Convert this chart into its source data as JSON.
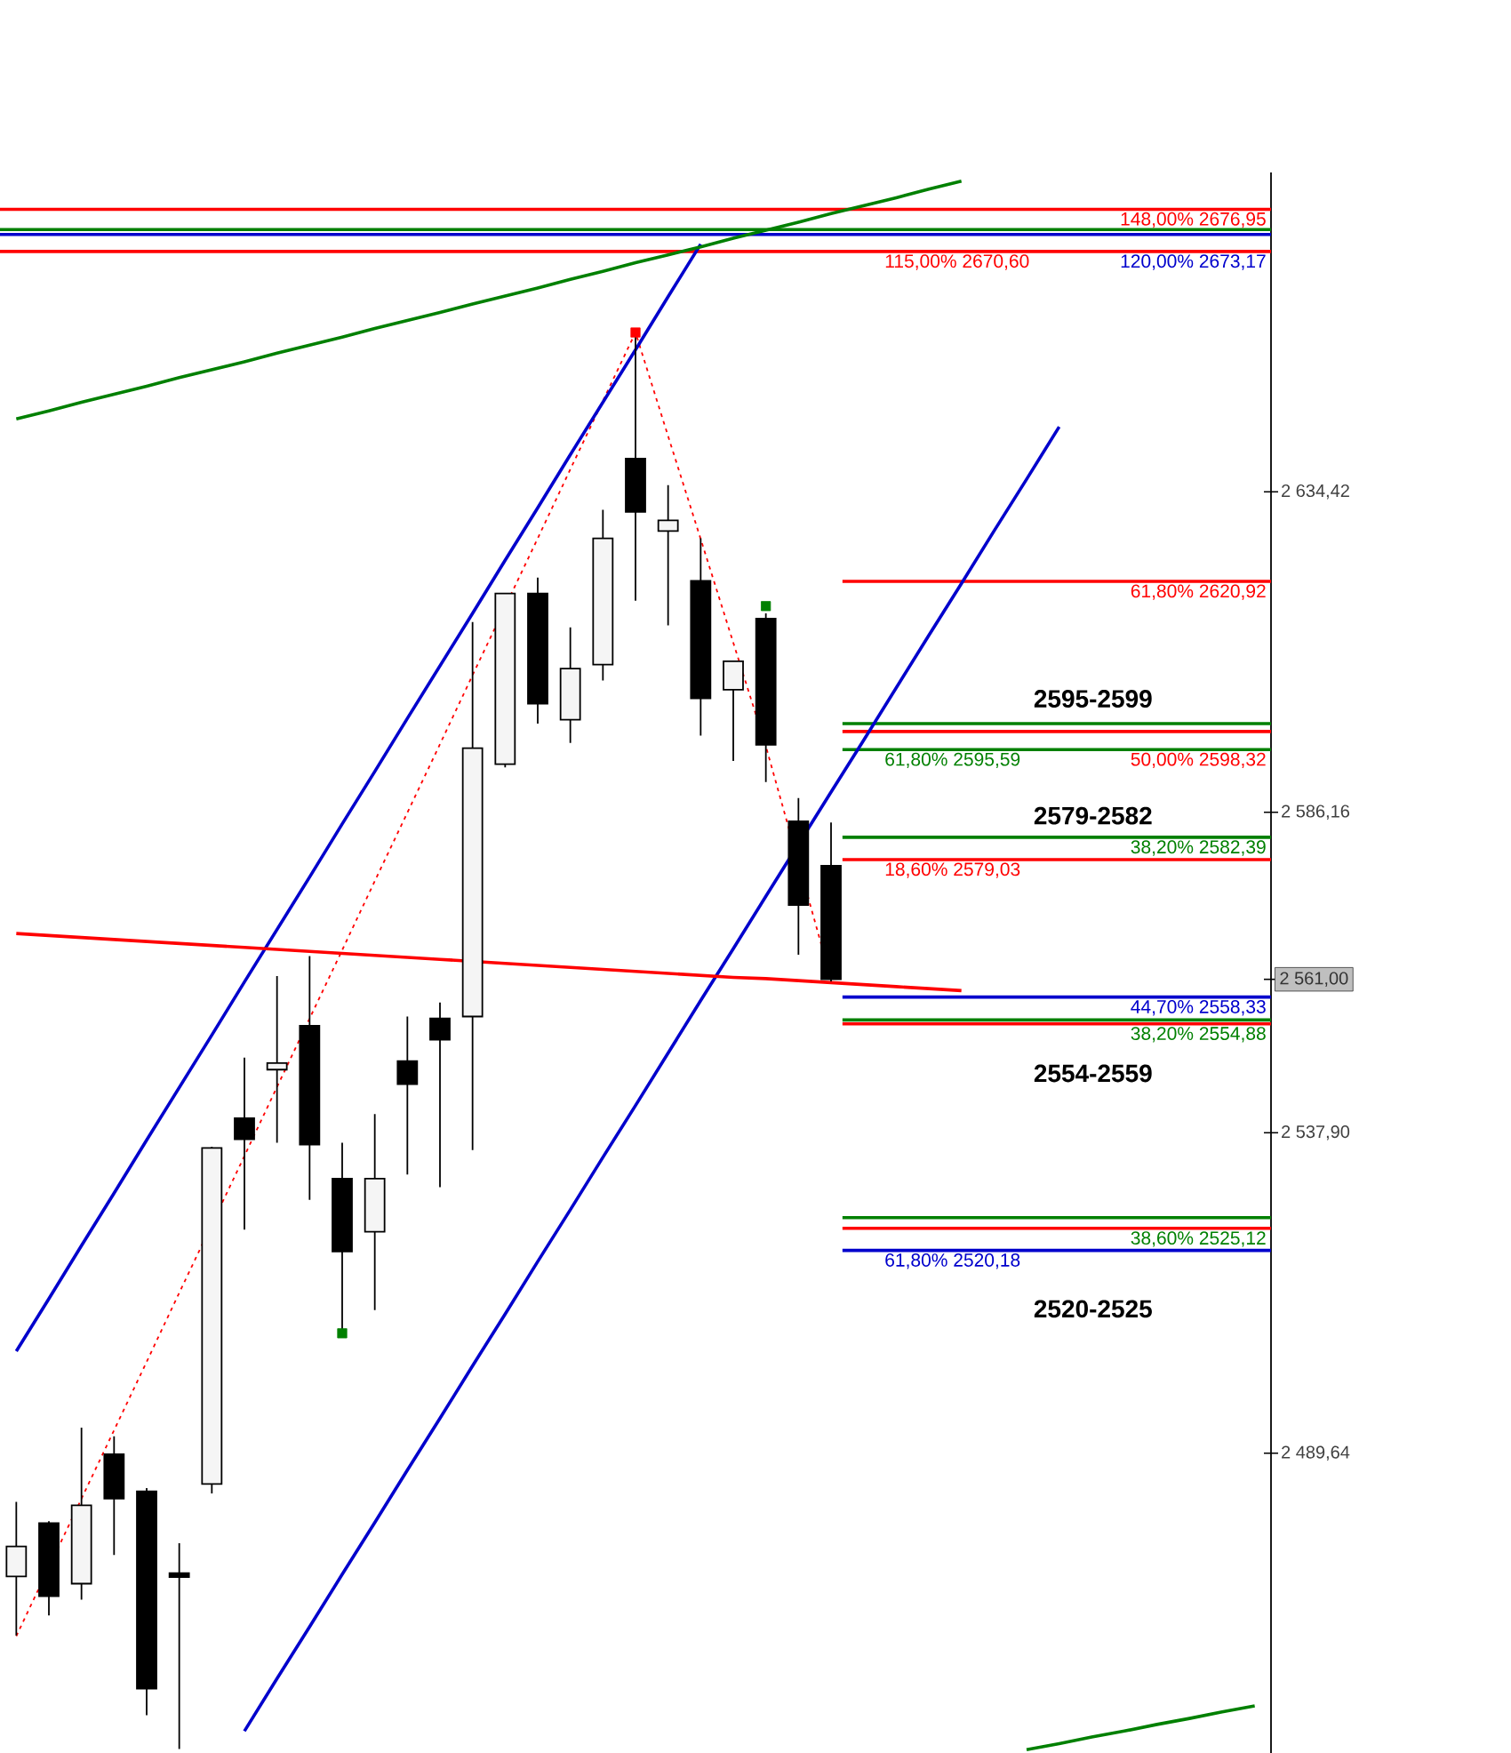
{
  "chart_data": {
    "type": "candlestick",
    "categories": [
      null,
      null,
      null,
      null,
      null,
      null,
      null,
      null,
      null,
      null,
      null,
      null,
      null,
      null,
      null,
      null,
      null,
      null,
      null,
      null,
      null,
      null,
      null,
      null,
      null,
      null,
      null,
      null,
      null,
      null,
      null,
      null,
      null,
      null,
      null,
      null,
      null,
      null,
      null
    ],
    "ohlc": [
      [
        2471.1,
        2482.3,
        2462.2,
        2475.6
      ],
      [
        2479.1,
        2479.4,
        2465.2,
        2468.1
      ],
      [
        2470.0,
        2493.5,
        2467.6,
        2481.8
      ],
      [
        2489.5,
        2492.2,
        2474.3,
        2482.8
      ],
      [
        2483.9,
        2484.4,
        2450.2,
        2454.2
      ],
      [
        2471.6,
        2476.1,
        2445.1,
        2471.0
      ],
      [
        2485.0,
        2535.8,
        2483.6,
        2535.6
      ],
      [
        2540.1,
        2549.2,
        2523.3,
        2536.9
      ],
      [
        2547.4,
        2561.5,
        2536.4,
        2548.4
      ],
      [
        2554.0,
        2564.5,
        2527.8,
        2536.1
      ],
      [
        2531.0,
        2536.4,
        2507.7,
        2520.0
      ],
      [
        2523.0,
        2540.7,
        2511.2,
        2531.0
      ],
      [
        2548.7,
        2555.4,
        2531.6,
        2545.2
      ],
      [
        2555.1,
        2557.5,
        2529.7,
        2551.9
      ],
      [
        2555.4,
        2614.8,
        2535.3,
        2595.8
      ],
      [
        2593.4,
        2619.1,
        2592.9,
        2619.1
      ],
      [
        2619.1,
        2621.5,
        2599.5,
        2602.5
      ],
      [
        2600.1,
        2614.0,
        2596.6,
        2607.8
      ],
      [
        2608.4,
        2631.7,
        2606.0,
        2627.4
      ],
      [
        2639.4,
        2658.4,
        2618.0,
        2631.4
      ],
      [
        2628.5,
        2635.4,
        2614.3,
        2630.1
      ],
      [
        2621.0,
        2627.4,
        2597.7,
        2603.3
      ],
      [
        2604.6,
        2608.9,
        2593.9,
        2608.9
      ],
      [
        2615.3,
        2616.1,
        2590.7,
        2596.3
      ],
      [
        2584.8,
        2588.3,
        2564.7,
        2572.2
      ],
      [
        2578.1,
        2584.6,
        2560.7,
        2561.0
      ],
      null,
      null,
      null,
      null,
      null,
      null,
      null,
      null,
      null,
      null,
      null,
      null,
      null
    ],
    "series": [
      {
        "type": "line",
        "color": "#ff0000",
        "line_style": "dashed",
        "values": [
          2462.1,
          null,
          2482.8,
          2493.1,
          2503.4,
          2513.8,
          null,
          2534.4,
          2544.8,
          2555.1,
          2565.4,
          2575.8,
          2586.1,
          2596.4,
          2606.8,
          null,
          2627.4,
          2637.8,
          2648.1,
          2658.4,
          2642.8,
          2627.3,
          2611.7,
          2596.1,
          null,
          2561.0,
          null,
          null,
          null,
          null,
          null,
          null,
          null,
          null,
          null,
          null,
          null,
          null,
          null
        ]
      },
      {
        "type": "line",
        "color": "#0000cc",
        "line_style": "solid",
        "values": [
          2505.0,
          2512.9,
          2520.9,
          2528.8,
          2536.8,
          2544.7,
          2552.6,
          2560.6,
          2568.5,
          2576.4,
          2584.4,
          2592.3,
          2600.3,
          2608.2,
          2616.1,
          2624.1,
          2632.0,
          2640.0,
          2647.9,
          2655.8,
          2663.8,
          2671.7,
          null,
          null,
          null,
          null,
          null,
          null,
          null,
          null,
          null,
          null,
          null,
          null,
          null,
          null,
          null,
          null,
          null
        ]
      },
      {
        "type": "line",
        "color": "#0000cc",
        "line_style": "solid",
        "values": [
          null,
          null,
          null,
          null,
          null,
          null,
          null,
          2447.8,
          2455.7,
          2463.5,
          2471.4,
          2479.2,
          2487.1,
          2494.9,
          2502.8,
          2510.6,
          2518.5,
          2526.3,
          2534.2,
          2542.0,
          2549.9,
          2557.8,
          2565.6,
          2573.5,
          null,
          2589.2,
          2597.0,
          2604.9,
          2612.8,
          2620.6,
          2628.5,
          2636.3,
          2644.2,
          null,
          null,
          null,
          null,
          null,
          null
        ]
      },
      {
        "type": "line",
        "color": "#008000",
        "line_style": "solid",
        "values": [
          2645.4,
          2646.6,
          2647.9,
          2649.1,
          2650.3,
          2651.6,
          2652.8,
          2654.0,
          2655.3,
          2656.5,
          2657.7,
          2659.0,
          2660.2,
          2661.4,
          2662.7,
          2663.9,
          2665.1,
          2666.4,
          2667.6,
          2668.9,
          2670.1,
          2671.3,
          2672.6,
          2673.8,
          2675.0,
          2676.3,
          2677.5,
          2678.7,
          2680.0,
          2681.2,
          null,
          null,
          null,
          null,
          null,
          null,
          null,
          null,
          null
        ]
      },
      {
        "type": "line",
        "color": "#ff0000",
        "line_style": "solid",
        "values": [
          2567.9,
          2567.6,
          2567.3,
          2567.0,
          2566.7,
          2566.4,
          2566.1,
          2565.8,
          2565.5,
          2565.2,
          2564.9,
          2564.6,
          2564.3,
          2564.0,
          null,
          2563.4,
          2563.1,
          2562.8,
          2562.5,
          2562.2,
          2561.9,
          2561.6,
          2561.3,
          2561.1,
          2560.8,
          2560.5,
          2560.2,
          2559.9,
          2559.6,
          2559.3,
          null,
          null,
          null,
          null,
          null,
          null,
          null,
          null,
          null
        ]
      },
      {
        "type": "line",
        "color": "#008000",
        "line_style": "solid",
        "values": [
          null,
          null,
          null,
          null,
          null,
          null,
          null,
          null,
          null,
          null,
          null,
          null,
          null,
          null,
          null,
          null,
          null,
          null,
          null,
          null,
          null,
          null,
          null,
          null,
          null,
          null,
          null,
          null,
          null,
          null,
          null,
          2445.0,
          2445.9,
          2446.9,
          2447.8,
          2448.8,
          2449.7,
          2450.7,
          2451.6
        ]
      },
      {
        "type": "scatter",
        "color": "#ff0000",
        "marker": "square",
        "values": [
          null,
          null,
          null,
          null,
          null,
          null,
          null,
          null,
          null,
          null,
          null,
          null,
          null,
          null,
          null,
          null,
          null,
          null,
          null,
          2658.4,
          null,
          null,
          null,
          null,
          null,
          null,
          null,
          null,
          null,
          null,
          null,
          null,
          null,
          null,
          null,
          null,
          null,
          null,
          null
        ]
      },
      {
        "type": "scatter",
        "color": "#008000",
        "marker": "square",
        "values": [
          null,
          null,
          null,
          null,
          null,
          null,
          null,
          null,
          null,
          null,
          2507.7,
          null,
          null,
          null,
          null,
          null,
          null,
          null,
          null,
          null,
          null,
          null,
          null,
          2617.2,
          null,
          null,
          null,
          null,
          null,
          null,
          null,
          null,
          null,
          null,
          null,
          null,
          null,
          null,
          null
        ]
      }
    ],
    "ref_lines": [
      {
        "axis": "y",
        "value": 2676.95,
        "label": "148,00% 2676,95",
        "color": "#ff0000"
      },
      {
        "axis": "y",
        "value": 2673.9,
        "color": "#008000"
      },
      {
        "axis": "y",
        "value": 2673.17,
        "label": "120,00% 2673,17",
        "color": "#0000cc"
      },
      {
        "axis": "y",
        "value": 2670.6,
        "label": "115,00% 2670,60",
        "color": "#ff0000"
      },
      {
        "axis": "y",
        "value": 2620.92,
        "label": "61,80% 2620,92",
        "color": "#ff0000"
      },
      {
        "axis": "y",
        "value": 2599.5,
        "color": "#008000"
      },
      {
        "axis": "y",
        "value": 2598.32,
        "label": "50,00% 2598,32",
        "color": "#ff0000"
      },
      {
        "axis": "y",
        "value": 2595.59,
        "label": "61,80% 2595,59",
        "color": "#008000"
      },
      {
        "axis": "y",
        "value": 2582.39,
        "label": "38,20% 2582,39",
        "color": "#008000"
      },
      {
        "axis": "y",
        "value": 2579.03,
        "label": "18,60% 2579,03",
        "color": "#ff0000"
      },
      {
        "axis": "y",
        "value": 2558.33,
        "label": "44,70% 2558,33",
        "color": "#0000cc"
      },
      {
        "axis": "y",
        "value": 2554.88,
        "label": "38,20% 2554,88",
        "color": "#008000"
      },
      {
        "axis": "y",
        "value": 2554.3,
        "color": "#ff0000"
      },
      {
        "axis": "y",
        "value": 2525.12,
        "label": "38,60% 2525,12",
        "color": "#008000"
      },
      {
        "axis": "y",
        "value": 2523.5,
        "color": "#ff0000"
      },
      {
        "axis": "y",
        "value": 2520.18,
        "label": "61,80% 2520,18",
        "color": "#0000cc"
      }
    ],
    "annotations": [
      "2595-2599",
      "2579-2582",
      "2554-2559",
      "2520-2525"
    ],
    "ylim": [
      2444.5,
      2682.5
    ],
    "yticks": [
      {
        "value": 2489.64,
        "label": "2 489,64"
      },
      {
        "value": 2537.9,
        "label": "2 537,90"
      },
      {
        "value": 2561.0,
        "label": "2 561,00"
      },
      {
        "value": 2586.16,
        "label": "2 586,16"
      },
      {
        "value": 2634.42,
        "label": "2 634,42"
      }
    ],
    "tick_labels": "y",
    "grid": false
  }
}
